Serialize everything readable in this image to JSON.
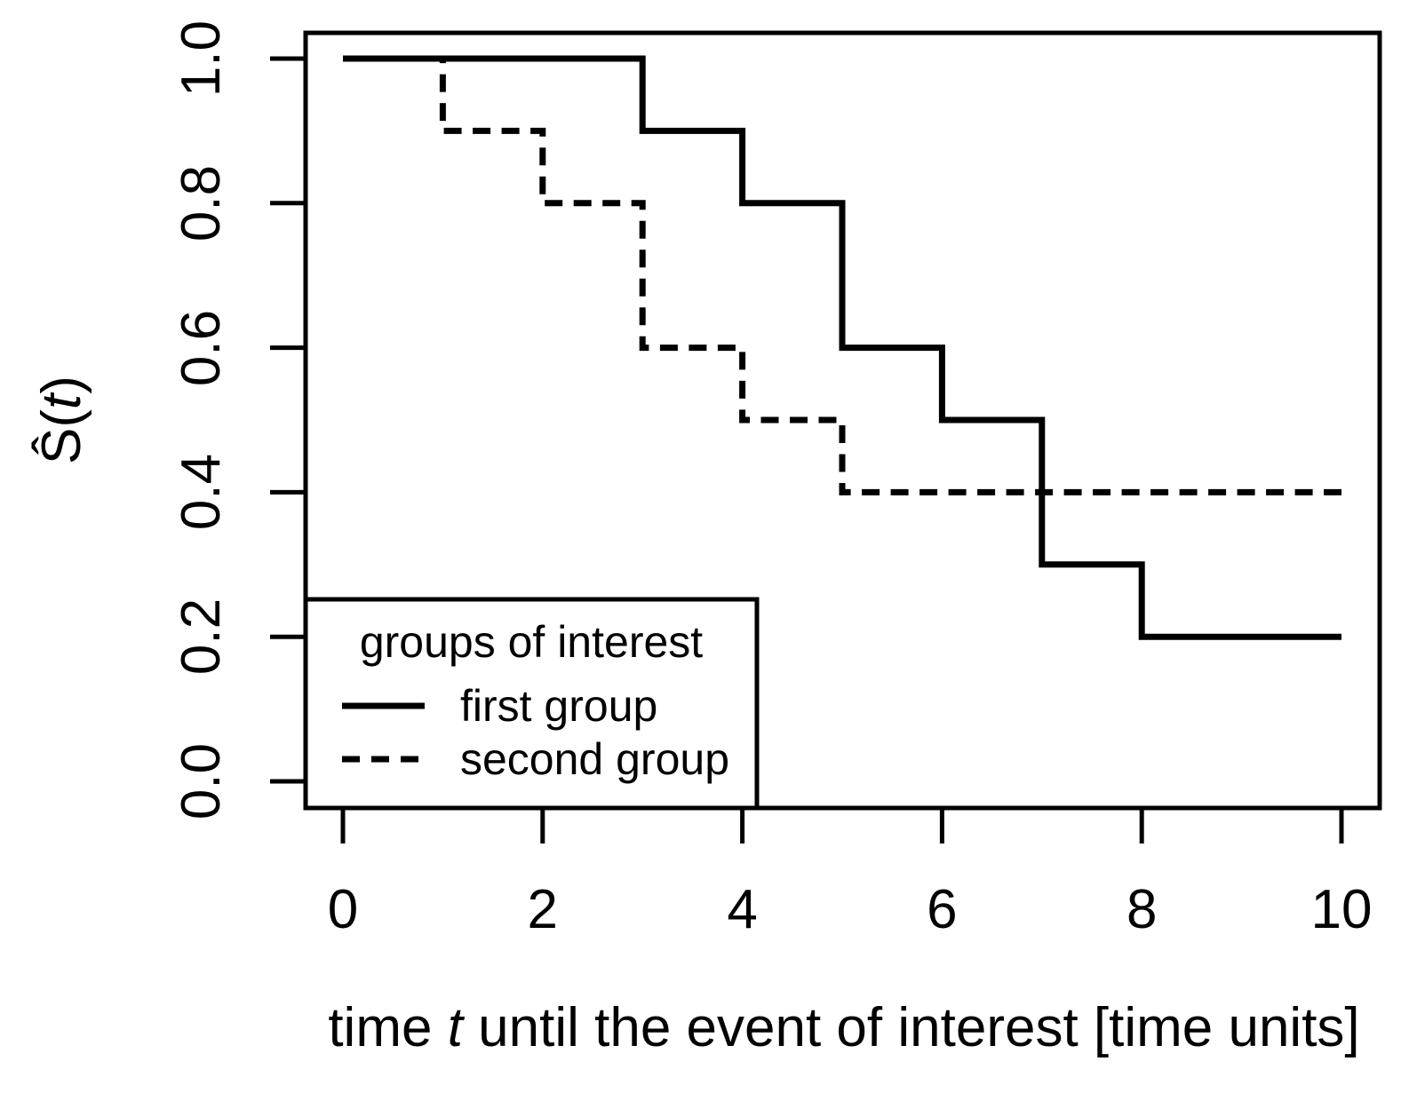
{
  "chart_data": {
    "type": "line",
    "variant": "kaplan-meier-step-survival",
    "title": "",
    "xlabel_parts": {
      "pre": "time ",
      "var": "t",
      "post": " until the event of interest [time units]"
    },
    "ylabel_parts": {
      "pre": "Ŝ(",
      "var": "t",
      "post": ")"
    },
    "xlim": [
      0,
      10
    ],
    "ylim": [
      0.0,
      1.0
    ],
    "x_ticks": [
      0,
      2,
      4,
      6,
      8,
      10
    ],
    "x_tick_labels": [
      "0",
      "2",
      "4",
      "6",
      "8",
      "10"
    ],
    "y_ticks": [
      1.0,
      0.8,
      0.6,
      0.4,
      0.2,
      0.0
    ],
    "y_tick_labels": [
      "1.0",
      "0.8",
      "0.6",
      "0.4",
      "0.2",
      "0.0"
    ],
    "grid": false,
    "line_color": "#000000",
    "background_color": "#ffffff",
    "legend": {
      "title": "groups of interest",
      "position": "bottom-left",
      "entries": [
        {
          "label": "first group",
          "line_style": "solid"
        },
        {
          "label": "second group",
          "line_style": "dashed"
        }
      ]
    },
    "series": [
      {
        "name": "first group",
        "line_style": "solid",
        "step_x": [
          0,
          3,
          4,
          5,
          6,
          7,
          8,
          10
        ],
        "step_y": [
          1.0,
          0.9,
          0.8,
          0.6,
          0.5,
          0.3,
          0.2,
          0.2
        ]
      },
      {
        "name": "second group",
        "line_style": "dashed",
        "step_x": [
          0,
          1,
          2,
          3,
          4,
          5,
          10
        ],
        "step_y": [
          1.0,
          0.9,
          0.8,
          0.6,
          0.5,
          0.4,
          0.4
        ]
      }
    ]
  }
}
